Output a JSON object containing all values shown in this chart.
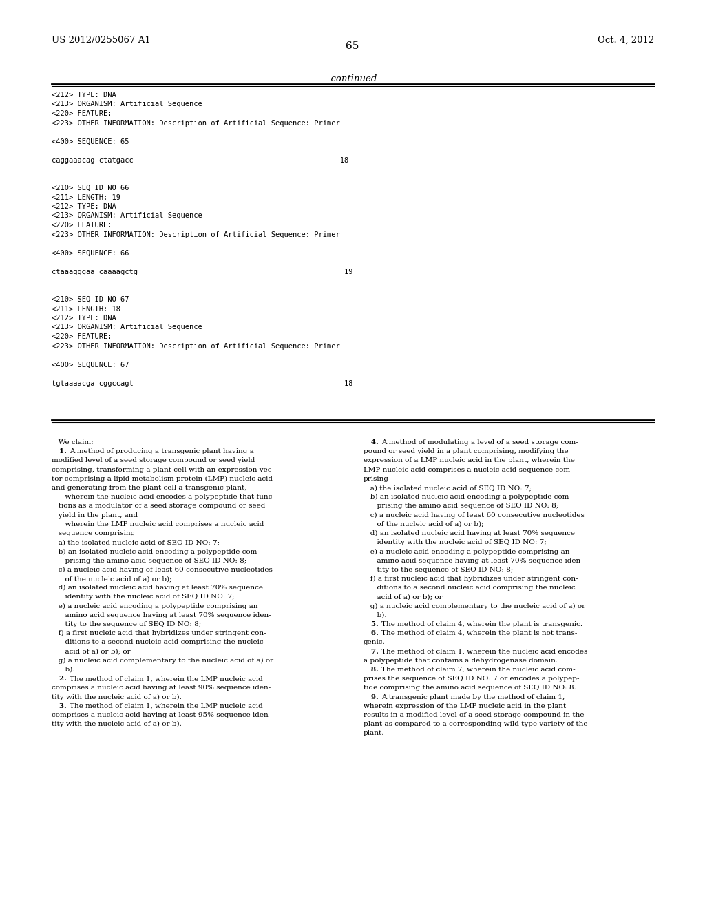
{
  "background_color": "#ffffff",
  "header_left": "US 2012/0255067 A1",
  "header_right": "Oct. 4, 2012",
  "page_number": "65",
  "continued_label": "-continued",
  "monospace_lines": [
    "<212> TYPE: DNA",
    "<213> ORGANISM: Artificial Sequence",
    "<220> FEATURE:",
    "<223> OTHER INFORMATION: Description of Artificial Sequence: Primer",
    "",
    "<400> SEQUENCE: 65",
    "",
    "caggaaacag ctatgacc                                                18",
    "",
    "",
    "<210> SEQ ID NO 66",
    "<211> LENGTH: 19",
    "<212> TYPE: DNA",
    "<213> ORGANISM: Artificial Sequence",
    "<220> FEATURE:",
    "<223> OTHER INFORMATION: Description of Artificial Sequence: Primer",
    "",
    "<400> SEQUENCE: 66",
    "",
    "ctaaagggaa caaaagctg                                                19",
    "",
    "",
    "<210> SEQ ID NO 67",
    "<211> LENGTH: 18",
    "<212> TYPE: DNA",
    "<213> ORGANISM: Artificial Sequence",
    "<220> FEATURE:",
    "<223> OTHER INFORMATION: Description of Artificial Sequence: Primer",
    "",
    "<400> SEQUENCE: 67",
    "",
    "tgtaaaacga cggccagt                                                 18"
  ],
  "claims_col1": [
    [
      "   We claim:",
      "normal"
    ],
    [
      "   1. A method of producing a transgenic plant having a",
      "bold_num"
    ],
    [
      "modified level of a seed storage compound or seed yield",
      "normal"
    ],
    [
      "comprising, transforming a plant cell with an expression vec-",
      "normal"
    ],
    [
      "tor comprising a lipid metabolism protein (LMP) nucleic acid",
      "normal"
    ],
    [
      "and generating from the plant cell a transgenic plant,",
      "normal"
    ],
    [
      "      wherein the nucleic acid encodes a polypeptide that func-",
      "normal"
    ],
    [
      "   tions as a modulator of a seed storage compound or seed",
      "normal"
    ],
    [
      "   yield in the plant, and",
      "normal"
    ],
    [
      "      wherein the LMP nucleic acid comprises a nucleic acid",
      "normal"
    ],
    [
      "   sequence comprising",
      "normal"
    ],
    [
      "   a) the isolated nucleic acid of SEQ ID NO: 7;",
      "normal"
    ],
    [
      "   b) an isolated nucleic acid encoding a polypeptide com-",
      "normal"
    ],
    [
      "      prising the amino acid sequence of SEQ ID NO: 8;",
      "normal"
    ],
    [
      "   c) a nucleic acid having of least 60 consecutive nucleotides",
      "normal"
    ],
    [
      "      of the nucleic acid of a) or b);",
      "normal"
    ],
    [
      "   d) an isolated nucleic acid having at least 70% sequence",
      "normal"
    ],
    [
      "      identity with the nucleic acid of SEQ ID NO: 7;",
      "normal"
    ],
    [
      "   e) a nucleic acid encoding a polypeptide comprising an",
      "normal"
    ],
    [
      "      amino acid sequence having at least 70% sequence iden-",
      "normal"
    ],
    [
      "      tity to the sequence of SEQ ID NO: 8;",
      "normal"
    ],
    [
      "   f) a first nucleic acid that hybridizes under stringent con-",
      "normal"
    ],
    [
      "      ditions to a second nucleic acid comprising the nucleic",
      "normal"
    ],
    [
      "      acid of a) or b); or",
      "normal"
    ],
    [
      "   g) a nucleic acid complementary to the nucleic acid of a) or",
      "normal"
    ],
    [
      "      b).",
      "normal"
    ],
    [
      "   2. The method of claim 1, wherein the LMP nucleic acid",
      "bold_num"
    ],
    [
      "comprises a nucleic acid having at least 90% sequence iden-",
      "normal"
    ],
    [
      "tity with the nucleic acid of a) or b).",
      "normal"
    ],
    [
      "   3. The method of claim 1, wherein the LMP nucleic acid",
      "bold_num"
    ],
    [
      "comprises a nucleic acid having at least 95% sequence iden-",
      "normal"
    ],
    [
      "tity with the nucleic acid of a) or b).",
      "normal"
    ]
  ],
  "claims_col2": [
    [
      "   4. A method of modulating a level of a seed storage com-",
      "bold_num"
    ],
    [
      "pound or seed yield in a plant comprising, modifying the",
      "normal"
    ],
    [
      "expression of a LMP nucleic acid in the plant, wherein the",
      "normal"
    ],
    [
      "LMP nucleic acid comprises a nucleic acid sequence com-",
      "normal"
    ],
    [
      "prising",
      "normal"
    ],
    [
      "   a) the isolated nucleic acid of SEQ ID NO: 7;",
      "normal"
    ],
    [
      "   b) an isolated nucleic acid encoding a polypeptide com-",
      "normal"
    ],
    [
      "      prising the amino acid sequence of SEQ ID NO: 8;",
      "normal"
    ],
    [
      "   c) a nucleic acid having of least 60 consecutive nucleotides",
      "normal"
    ],
    [
      "      of the nucleic acid of a) or b);",
      "normal"
    ],
    [
      "   d) an isolated nucleic acid having at least 70% sequence",
      "normal"
    ],
    [
      "      identity with the nucleic acid of SEQ ID NO: 7;",
      "normal"
    ],
    [
      "   e) a nucleic acid encoding a polypeptide comprising an",
      "normal"
    ],
    [
      "      amino acid sequence having at least 70% sequence iden-",
      "normal"
    ],
    [
      "      tity to the sequence of SEQ ID NO: 8;",
      "normal"
    ],
    [
      "   f) a first nucleic acid that hybridizes under stringent con-",
      "normal"
    ],
    [
      "      ditions to a second nucleic acid comprising the nucleic",
      "normal"
    ],
    [
      "      acid of a) or b); or",
      "normal"
    ],
    [
      "   g) a nucleic acid complementary to the nucleic acid of a) or",
      "normal"
    ],
    [
      "      b).",
      "normal"
    ],
    [
      "   5. The method of claim 4, wherein the plant is transgenic.",
      "bold_num"
    ],
    [
      "   6. The method of claim 4, wherein the plant is not trans-",
      "bold_num"
    ],
    [
      "genic.",
      "normal"
    ],
    [
      "   7. The method of claim 1, wherein the nucleic acid encodes",
      "bold_num"
    ],
    [
      "a polypeptide that contains a dehydrogenase domain.",
      "normal"
    ],
    [
      "   8. The method of claim 7, wherein the nucleic acid com-",
      "bold_num"
    ],
    [
      "prises the sequence of SEQ ID NO: 7 or encodes a polypep-",
      "normal"
    ],
    [
      "tide comprising the amino acid sequence of SEQ ID NO: 8.",
      "normal"
    ],
    [
      "   9. A transgenic plant made by the method of claim 1,",
      "bold_num"
    ],
    [
      "wherein expression of the LMP nucleic acid in the plant",
      "normal"
    ],
    [
      "results in a modified level of a seed storage compound in the",
      "normal"
    ],
    [
      "plant as compared to a corresponding wild type variety of the",
      "normal"
    ],
    [
      "plant.",
      "normal"
    ]
  ]
}
